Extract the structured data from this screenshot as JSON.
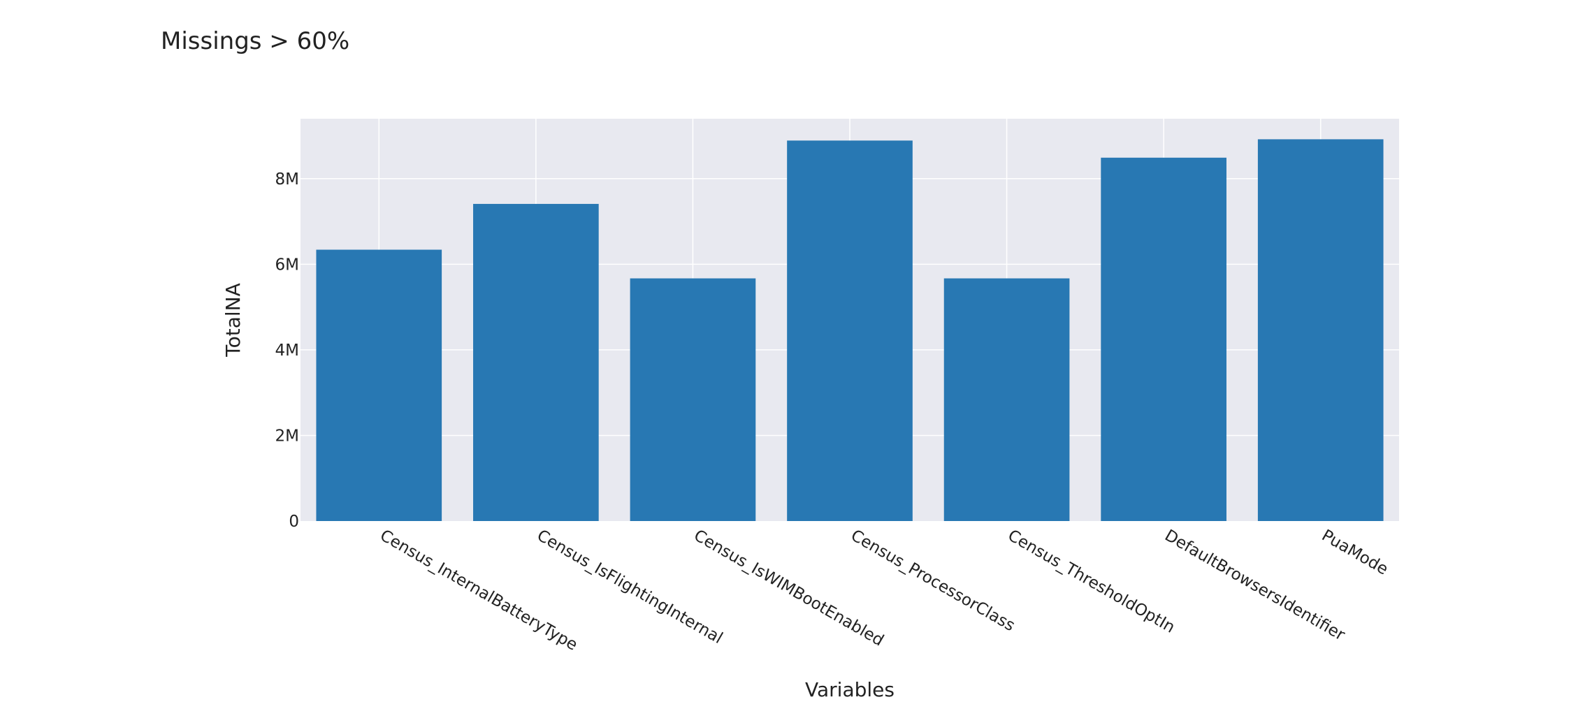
{
  "chart_data": {
    "type": "bar",
    "title": "Missings > 60%",
    "xlabel": "Variables",
    "ylabel": "TotalNA",
    "categories": [
      "Census_InternalBatteryType",
      "Census_IsFlightingInternal",
      "Census_IsWIMBootEnabled",
      "Census_ProcessorClass",
      "Census_ThresholdOptIn",
      "DefaultBrowsersIdentifier",
      "PuaMode"
    ],
    "values": [
      6340000,
      7410000,
      5670000,
      8890000,
      5670000,
      8490000,
      8920000
    ],
    "ylim": [
      0,
      9400000
    ],
    "yticks": [
      0,
      2000000,
      4000000,
      6000000,
      8000000
    ],
    "ytick_labels": [
      "0",
      "2M",
      "4M",
      "6M",
      "8M"
    ],
    "grid": true,
    "legend": "none",
    "colors": {
      "bar": "#2878b3",
      "plot_bg": "#e8e9f0",
      "grid": "#ffffff"
    }
  }
}
